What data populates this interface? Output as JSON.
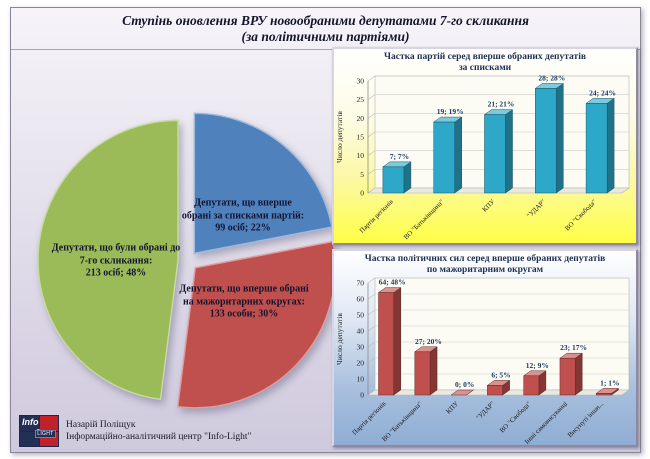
{
  "page": {
    "title": "Ступінь оновлення ВРУ новообраними депутатами 7-го скликання\n(за політичними партіями)"
  },
  "footer": {
    "logo": {
      "info": "Info",
      "light": "LIGHT"
    },
    "author": "Назарій Поліщук",
    "org": "Інформаційно-аналітичний центр \"Info-Light\""
  },
  "chart_data": [
    {
      "type": "pie",
      "title": "Ступінь оновлення ВРУ новообраними депутатами 7-го скликання (за політичними партіями)",
      "legend_position": "none",
      "slices": [
        {
          "name": "first-elected-by-party-lists",
          "label": "Депутати,  що вперше\nобрані за списками партій:\n99 осіб;  22%",
          "value": 99,
          "percent": 22,
          "color": "#4f81bd"
        },
        {
          "name": "first-elected-majoritarian",
          "label": "Депутати,  що вперше обрані\nна мажоритарних округах:\n133 особи;  30%",
          "value": 133,
          "percent": 30,
          "color": "#c0504d"
        },
        {
          "name": "elected-before-7th-convocation",
          "label": "Депутати,  що були обрані до\n7-го скликання:\n213 осіб;  48%",
          "value": 213,
          "percent": 48,
          "color": "#9bbb59"
        }
      ]
    },
    {
      "type": "bar",
      "title": "Частка партій серед вперше обраних депутатів\nза списками",
      "xlabel": "",
      "ylabel": "Число депутатів",
      "ylim": [
        0,
        30
      ],
      "ytick_step": 5,
      "grid": true,
      "categories": [
        "Партія регіонів",
        "ВО \"Батьківщина\"",
        "КПУ",
        "\"УДАР\"",
        "ВО \"Свобода\""
      ],
      "values": [
        7,
        19,
        21,
        28,
        24
      ],
      "labels": [
        "7; 7%",
        "19; 19%",
        "21; 21%",
        "28; 28%",
        "24; 24%"
      ],
      "bar_color": "#2ea8c8"
    },
    {
      "type": "bar",
      "title": "Частка політичних сил серед вперше обраних депутатів\nпо  мажоритарним округам",
      "xlabel": "",
      "ylabel": "Число депутатів",
      "ylim": [
        0,
        70
      ],
      "ytick_step": 10,
      "grid": true,
      "categories": [
        "Партія регіонів",
        "ВО \"Батьківщина\"",
        "КПУ",
        "\"УДАР\"",
        "ВО \"Свобода\"",
        "Інші самовисуванці",
        "Висунуті інши..."
      ],
      "values": [
        64,
        27,
        0,
        6,
        12,
        23,
        1
      ],
      "labels": [
        "64; 48%",
        "27; 20%",
        "0; 0%",
        "6; 5%",
        "12; 9%",
        "23; 17%",
        "1; 1%"
      ],
      "bar_color": "#c0504d"
    }
  ]
}
